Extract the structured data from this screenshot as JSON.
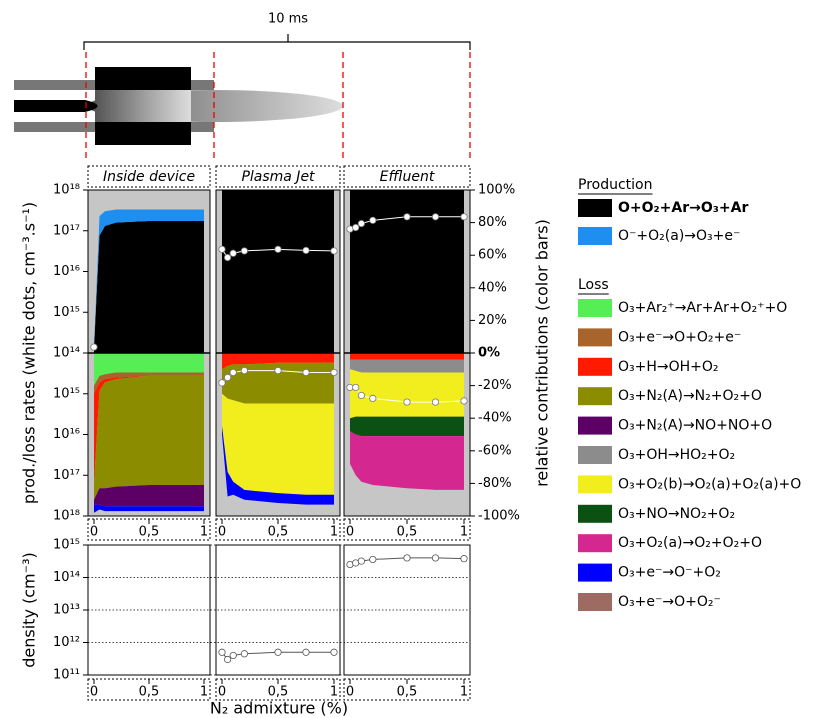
{
  "schematic_label": "10 ms",
  "chart_data": [
    {
      "type": "stacked-area",
      "ylabel": "prod./loss rates (white dots, cm⁻³.s⁻¹)",
      "y2label": "relative contributions (color bars)",
      "x": [
        0,
        0.05,
        0.1,
        0.2,
        0.5,
        0.75,
        1
      ],
      "xlim": [
        0,
        1
      ],
      "xticks": [
        0,
        {
          "value": 0.5,
          "label": "0,5"
        },
        1
      ],
      "log_y": true,
      "ylim": [
        100000000000000.0,
        1e+18
      ],
      "yticks": [
        {
          "value": 1e+18,
          "label": "10¹⁸"
        },
        {
          "value": 1e+17,
          "label": "10¹⁷"
        },
        {
          "value": 1e+16,
          "label": "10¹⁶"
        },
        {
          "value": 1000000000000000.0,
          "label": "10¹⁵"
        },
        {
          "value": 100000000000000.0,
          "label": "10¹⁴"
        }
      ],
      "yticks_loss": [
        {
          "value": 1000000000000000.0,
          "label": "10¹⁵"
        },
        {
          "value": 1e+16,
          "label": "10¹⁶"
        },
        {
          "value": 1e+17,
          "label": "10¹⁷"
        },
        {
          "value": 1e+18,
          "label": "10¹⁸"
        }
      ],
      "y2lim": [
        -100,
        100
      ],
      "y2ticks": [
        {
          "value": 100,
          "label": "100%"
        },
        {
          "value": 80,
          "label": "80%"
        },
        {
          "value": 60,
          "label": "60%"
        },
        {
          "value": 40,
          "label": "40%"
        },
        {
          "value": 20,
          "label": "20%"
        },
        {
          "value": 0,
          "label": "0%"
        },
        {
          "value": -20,
          "label": "-20%"
        },
        {
          "value": -40,
          "label": "-40%"
        },
        {
          "value": -60,
          "label": "-60%"
        },
        {
          "value": -80,
          "label": "-80%"
        },
        {
          "value": -100,
          "label": "-100%"
        }
      ],
      "groups": [
        {
          "title": "Production",
          "series": [
            {
              "name": "O+O₂+Ar→O₃+Ar",
              "color": "#000000"
            },
            {
              "name": "O⁻+O₂(a)→O₃+e⁻",
              "color": "#1e8ff0"
            }
          ]
        },
        {
          "title": "Loss",
          "series": [
            {
              "name": "O₃+Ar₂⁺→Ar+Ar+O₂⁺+O",
              "color": "#55ee55"
            },
            {
              "name": "O₃+e⁻→O+O₂+e⁻",
              "color": "#a8642a"
            },
            {
              "name": "O₃+H→OH+O₂",
              "color": "#ff1a00"
            },
            {
              "name": "O₃+N₂(A)→N₂+O₂+O",
              "color": "#8c8c00"
            },
            {
              "name": "O₃+N₂(A)→NO+NO+O",
              "color": "#5c0066"
            },
            {
              "name": "O₃+OH→HO₂+O₂",
              "color": "#8c8c8c"
            },
            {
              "name": "O₃+O₂(b)→O₂(a)+O₂(a)+O",
              "color": "#f2ee1e"
            },
            {
              "name": "O₃+NO→NO₂+O₂",
              "color": "#0b5212"
            },
            {
              "name": "O₃+O₂(a)→O₂+O₂+O",
              "color": "#d42890"
            },
            {
              "name": "O₃+e⁻→O⁻+O₂",
              "color": "#0000ff"
            },
            {
              "name": "O₃+e⁻→O+O₂⁻",
              "color": "#9e6b63"
            }
          ]
        }
      ],
      "dot_color": "#ffffff",
      "panels": [
        {
          "title": "Inside device",
          "values": [
            [
              [
                3,
                72,
                78,
                80,
                81,
                81,
                81
              ],
              [
                1,
                12,
                9,
                8,
                7,
                7,
                7
              ]
            ],
            [
              [
                -20,
                -14,
                -13,
                -12,
                -12,
                -12,
                -12
              ],
              [
                -5,
                -4,
                -3,
                -3,
                -2,
                -2,
                -2
              ],
              [
                -55,
                -5,
                -2,
                -1,
                0,
                0,
                0
              ],
              [
                -10,
                -60,
                -65,
                -66,
                -67,
                -67,
                -67
              ],
              [
                -3,
                -10,
                -11,
                -12,
                -13,
                -13,
                -13
              ],
              [
                0,
                0,
                0,
                0,
                0,
                0,
                0
              ],
              [
                0,
                0,
                0,
                0,
                0,
                0,
                0
              ],
              [
                0,
                0,
                0,
                0,
                0,
                0,
                0
              ],
              [
                0,
                0,
                0,
                0,
                0,
                0,
                0
              ],
              [
                -5,
                -3,
                -3,
                -3,
                -3,
                -3,
                -3
              ],
              [
                0,
                0,
                0,
                0,
                0,
                0,
                0
              ]
            ]
          ],
          "rates": [
            [
              140000000000000.0,
              null,
              null,
              null,
              null,
              null,
              null
            ],
            [
              null,
              null,
              null,
              null,
              null,
              null,
              null
            ]
          ]
        },
        {
          "title": "Plasma Jet",
          "values": [
            [
              [
                100,
                100,
                100,
                100,
                100,
                100,
                100
              ],
              [
                0,
                0,
                0,
                0,
                0,
                0,
                0
              ]
            ],
            [
              [
                0,
                0,
                0,
                0,
                0,
                0,
                0
              ],
              [
                0,
                0,
                0,
                0,
                0,
                0,
                0
              ],
              [
                -10,
                -8,
                -7,
                -7,
                -6,
                -6,
                -6
              ],
              [
                -15,
                -20,
                -22,
                -24,
                -25,
                -25,
                -25
              ],
              [
                0,
                0,
                0,
                0,
                0,
                0,
                0
              ],
              [
                0,
                0,
                0,
                0,
                0,
                0,
                0
              ],
              [
                -20,
                -45,
                -50,
                -53,
                -55,
                -56,
                -56
              ],
              [
                0,
                0,
                0,
                0,
                0,
                0,
                0
              ],
              [
                0,
                0,
                0,
                0,
                0,
                0,
                0
              ],
              [
                -5,
                -15,
                -8,
                -6,
                -6,
                -6,
                -6
              ],
              [
                0,
                0,
                0,
                0,
                0,
                0,
                0
              ]
            ]
          ],
          "rates": [
            [
              3.5e+16,
              2.2e+16,
              2.8e+16,
              3.2e+16,
              3.5e+16,
              3.3e+16,
              3.2e+16
            ],
            [
              540000000000000.0,
              400000000000000.0,
              300000000000000.0,
              270000000000000.0,
              270000000000000.0,
              300000000000000.0,
              300000000000000.0
            ]
          ]
        },
        {
          "title": "Effluent",
          "values": [
            [
              [
                100,
                100,
                100,
                100,
                100,
                100,
                100
              ],
              [
                0,
                0,
                0,
                0,
                0,
                0,
                0
              ]
            ],
            [
              [
                0,
                0,
                0,
                0,
                0,
                0,
                0
              ],
              [
                0,
                0,
                0,
                0,
                0,
                0,
                0
              ],
              [
                -4,
                -4,
                -4,
                -4,
                -4,
                -4,
                -4
              ],
              [
                0,
                0,
                0,
                0,
                0,
                0,
                0
              ],
              [
                0,
                0,
                0,
                0,
                0,
                0,
                0
              ],
              [
                -6,
                -7,
                -8,
                -8,
                -8,
                -8,
                -8
              ],
              [
                -30,
                -28,
                -27,
                -27,
                -27,
                -27,
                -27
              ],
              [
                -8,
                -11,
                -12,
                -12,
                -12,
                -12,
                -12
              ],
              [
                -20,
                -25,
                -28,
                -30,
                -32,
                -33,
                -33
              ],
              [
                0,
                0,
                0,
                0,
                0,
                0,
                0
              ],
              [
                0,
                0,
                0,
                0,
                0,
                0,
                0
              ]
            ]
          ],
          "rates": [
            [
              1.1e+17,
              1.2e+17,
              1.5e+17,
              1.8e+17,
              2.2e+17,
              2.2e+17,
              2.2e+17
            ],
            [
              700000000000000.0,
              700000000000000.0,
              1100000000000000.0,
              1300000000000000.0,
              1600000000000000.0,
              1600000000000000.0,
              1500000000000000.0
            ]
          ]
        }
      ]
    },
    {
      "type": "scatter",
      "ylabel": "density (cm⁻³)",
      "xlabel": "N₂ admixture (%)",
      "x": [
        0,
        0.05,
        0.1,
        0.2,
        0.5,
        0.75,
        1
      ],
      "xlim": [
        0,
        1
      ],
      "xticks": [
        0,
        {
          "value": 0.5,
          "label": "0,5"
        },
        1
      ],
      "log_y": true,
      "ylim": [
        100000000000.0,
        1000000000000000.0
      ],
      "yticks": [
        {
          "value": 1000000000000000.0,
          "label": "10¹⁵"
        },
        {
          "value": 100000000000000.0,
          "label": "10¹⁴"
        },
        {
          "value": 10000000000000.0,
          "label": "10¹³"
        },
        {
          "value": 1000000000000.0,
          "label": "10¹²"
        },
        {
          "value": 100000000000.0,
          "label": "10¹¹"
        }
      ],
      "grid": "dotted",
      "values": [
        [
          null,
          null,
          null,
          null,
          null,
          null,
          null
        ],
        [
          500000000000.0,
          300000000000.0,
          400000000000.0,
          450000000000.0,
          500000000000.0,
          500000000000.0,
          500000000000.0
        ],
        [
          250000000000000.0,
          280000000000000.0,
          320000000000000.0,
          360000000000000.0,
          400000000000000.0,
          400000000000000.0,
          380000000000000.0
        ]
      ]
    }
  ]
}
